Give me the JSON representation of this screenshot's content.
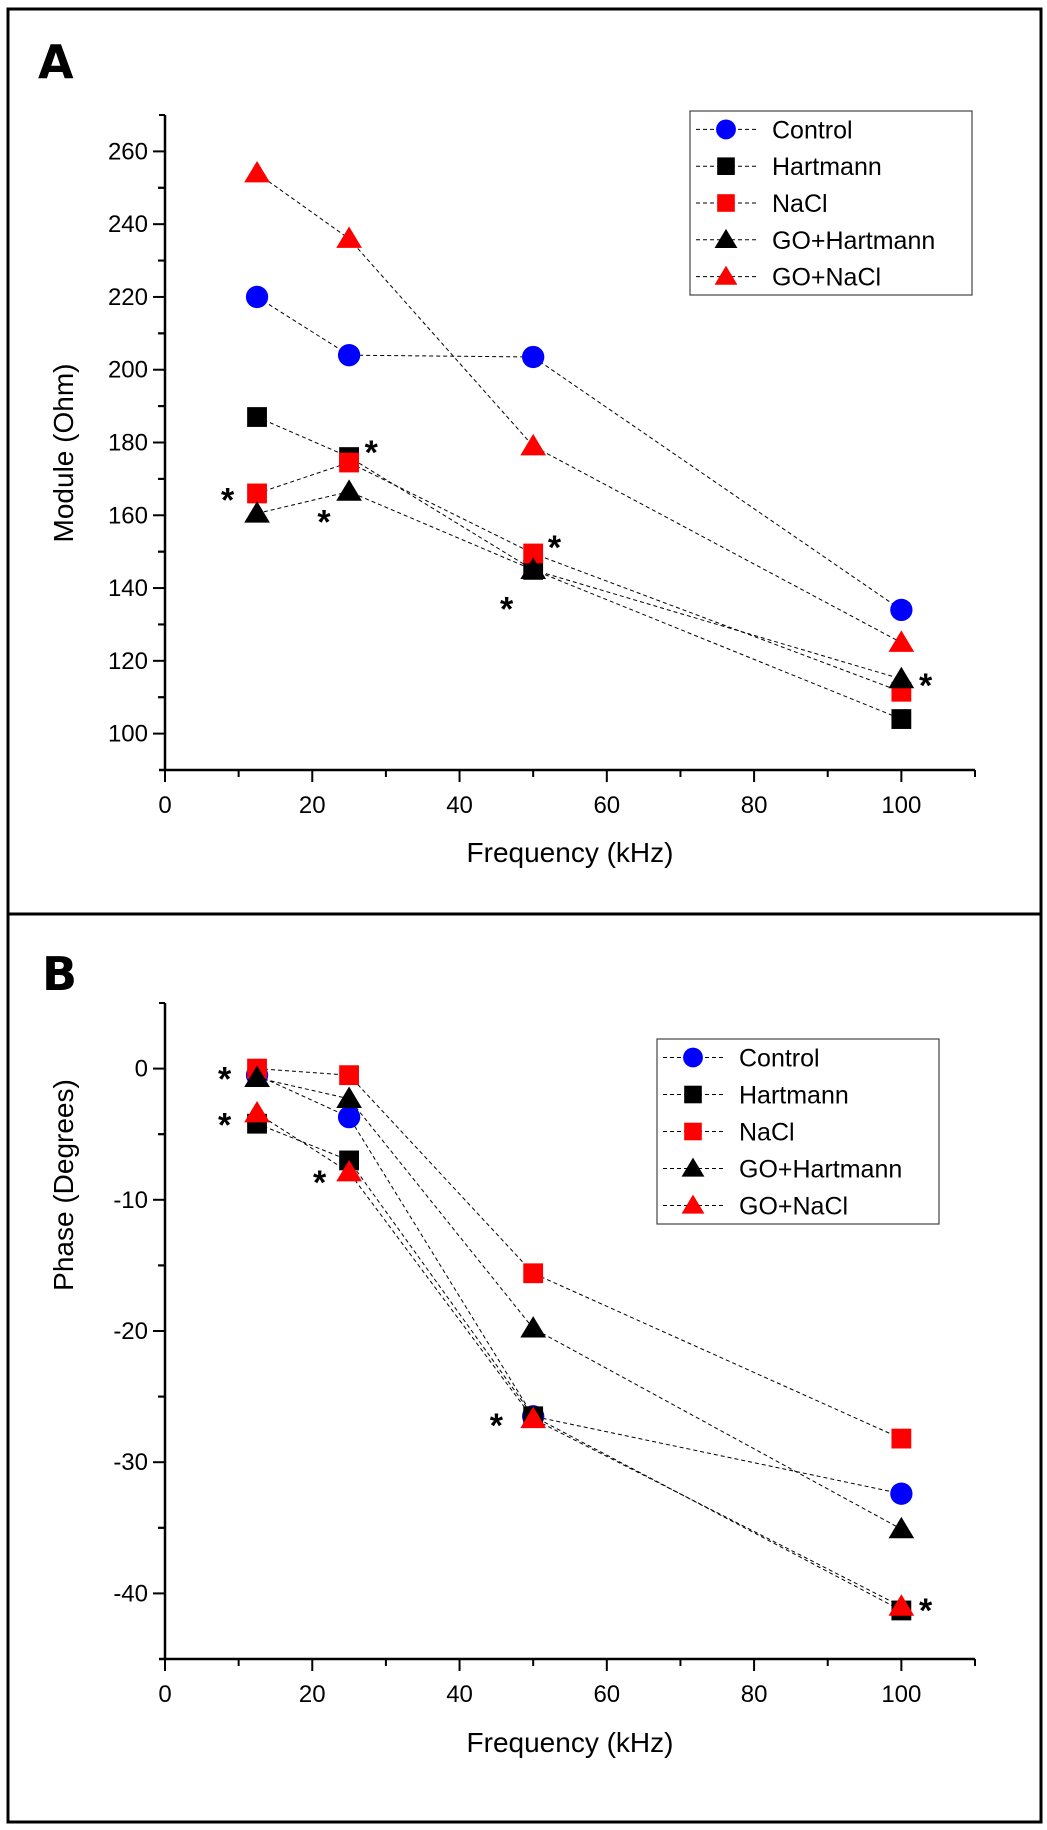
{
  "figure": {
    "panels": [
      "A",
      "B"
    ]
  },
  "series_styles": [
    {
      "name": "Control",
      "color": "#0000ff",
      "marker": "circle"
    },
    {
      "name": "Hartmann",
      "color": "#000000",
      "marker": "square"
    },
    {
      "name": "NaCl",
      "color": "#ff0000",
      "marker": "square"
    },
    {
      "name": "GO+Hartmann",
      "color": "#000000",
      "marker": "triangle"
    },
    {
      "name": "GO+NaCl",
      "color": "#ff0000",
      "marker": "triangle"
    }
  ],
  "chart_data": [
    {
      "panel_label": "A",
      "type": "line",
      "title": "",
      "xlabel": "Frequency (kHz)",
      "ylabel": "Module (Ohm)",
      "xlim": [
        0,
        110
      ],
      "ylim": [
        90,
        270
      ],
      "xticks": [
        0,
        20,
        40,
        60,
        80,
        100
      ],
      "yticks": [
        100,
        120,
        140,
        160,
        180,
        200,
        220,
        240,
        260
      ],
      "legend": "top-right",
      "grid": false,
      "x": [
        12.5,
        25,
        50,
        100
      ],
      "series": [
        {
          "name": "Control",
          "values": [
            220.0,
            204.0,
            203.5,
            134.0
          ]
        },
        {
          "name": "Hartmann",
          "values": [
            187.0,
            176.0,
            145.0,
            104.0
          ]
        },
        {
          "name": "NaCl",
          "values": [
            166.0,
            174.5,
            149.5,
            111.5
          ]
        },
        {
          "name": "GO+Hartmann",
          "values": [
            160.5,
            166.5,
            145.0,
            115.0
          ]
        },
        {
          "name": "GO+NaCl",
          "values": [
            254.0,
            236.0,
            179.0,
            125.0
          ]
        }
      ],
      "annotations": [
        {
          "text": "*",
          "x": 8.5,
          "y": 166
        },
        {
          "text": "*",
          "x": 28.0,
          "y": 179
        },
        {
          "text": "*",
          "x": 21.6,
          "y": 160
        },
        {
          "text": "*",
          "x": 52.9,
          "y": 153
        },
        {
          "text": "*",
          "x": 46.4,
          "y": 136
        },
        {
          "text": "*",
          "x": 103.3,
          "y": 115
        }
      ]
    },
    {
      "panel_label": "B",
      "type": "line",
      "title": "",
      "xlabel": "Frequency (kHz)",
      "ylabel": "Phase (Degrees)",
      "xlim": [
        0,
        110
      ],
      "ylim": [
        -45,
        5
      ],
      "xticks": [
        0,
        20,
        40,
        60,
        80,
        100
      ],
      "yticks": [
        0,
        -10,
        -20,
        -30,
        -40
      ],
      "legend": "top-right",
      "grid": false,
      "x": [
        12.5,
        25,
        50,
        100
      ],
      "series": [
        {
          "name": "Control",
          "values": [
            -0.5,
            -3.7,
            -26.5,
            -32.4
          ]
        },
        {
          "name": "Hartmann",
          "values": [
            -4.2,
            -7.0,
            -26.5,
            -41.3
          ]
        },
        {
          "name": "NaCl",
          "values": [
            0.0,
            -0.5,
            -15.6,
            -28.2
          ]
        },
        {
          "name": "GO+Hartmann",
          "values": [
            -0.7,
            -2.3,
            -19.8,
            -35.1
          ]
        },
        {
          "name": "GO+NaCl",
          "values": [
            -3.4,
            -7.9,
            -26.7,
            -41.0
          ]
        }
      ],
      "annotations": [
        {
          "text": "*",
          "x": 8.1,
          "y": -0.3
        },
        {
          "text": "*",
          "x": 8.1,
          "y": -3.8
        },
        {
          "text": "*",
          "x": 21.0,
          "y": -8.2
        },
        {
          "text": "*",
          "x": 45.0,
          "y": -26.7
        },
        {
          "text": "*",
          "x": 103.3,
          "y": -40.8
        }
      ]
    }
  ]
}
